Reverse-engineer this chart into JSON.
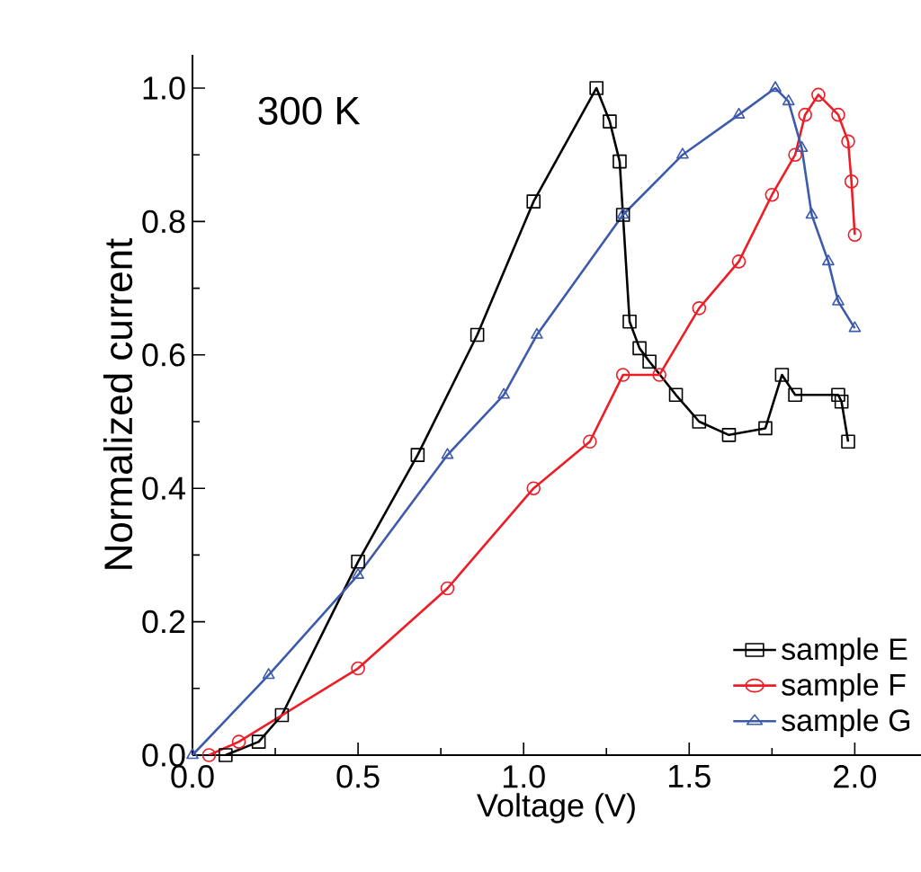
{
  "chart_data": {
    "type": "line",
    "xlabel": "Voltage (V)",
    "ylabel": "Normalized current",
    "annotations": [
      "300 K"
    ],
    "xlim": [
      0,
      2.2
    ],
    "ylim": [
      0,
      1.05
    ],
    "xticks": [
      {
        "value": 0,
        "label": "0.0"
      },
      0.5,
      {
        "value": 1,
        "label": "1.0"
      },
      1.5,
      {
        "value": 2,
        "label": "2.0"
      }
    ],
    "yticks": [
      {
        "value": 0,
        "label": "0.0"
      },
      0.2,
      0.4,
      0.6,
      0.8,
      {
        "value": 1,
        "label": "1.0"
      }
    ],
    "legend": "bottom right",
    "grid": false,
    "series": [
      {
        "name": "sample E",
        "color": "#000000",
        "marker": "square",
        "x": [
          0.1,
          0.2,
          0.27,
          0.5,
          0.68,
          0.86,
          1.03,
          1.22,
          1.26,
          1.29,
          1.3,
          1.32,
          1.35,
          1.38,
          1.46,
          1.53,
          1.62,
          1.73,
          1.78,
          1.82,
          1.95,
          1.96,
          1.98
        ],
        "values": [
          0.0,
          0.02,
          0.06,
          0.29,
          0.45,
          0.63,
          0.83,
          1.0,
          0.95,
          0.89,
          0.81,
          0.65,
          0.61,
          0.59,
          0.54,
          0.5,
          0.48,
          0.49,
          0.57,
          0.54,
          0.54,
          0.53,
          0.47
        ]
      },
      {
        "name": "sample F",
        "color": "#ee1c25",
        "marker": "circle",
        "x": [
          0.05,
          0.14,
          0.5,
          0.77,
          1.03,
          1.2,
          1.3,
          1.41,
          1.53,
          1.65,
          1.75,
          1.82,
          1.85,
          1.89,
          1.95,
          1.98,
          1.99,
          2.0
        ],
        "values": [
          0.0,
          0.02,
          0.13,
          0.25,
          0.4,
          0.47,
          0.57,
          0.57,
          0.67,
          0.74,
          0.84,
          0.9,
          0.96,
          0.99,
          0.96,
          0.92,
          0.86,
          0.78
        ]
      },
      {
        "name": "sample G",
        "color": "#3d5aab",
        "marker": "triangle",
        "x": [
          0.0,
          0.23,
          0.5,
          0.77,
          0.94,
          1.04,
          1.3,
          1.48,
          1.65,
          1.76,
          1.8,
          1.84,
          1.87,
          1.92,
          1.95,
          2.0
        ],
        "values": [
          0.0,
          0.12,
          0.27,
          0.45,
          0.54,
          0.63,
          0.81,
          0.9,
          0.96,
          1.0,
          0.98,
          0.91,
          0.81,
          0.74,
          0.68,
          0.64
        ]
      }
    ]
  }
}
